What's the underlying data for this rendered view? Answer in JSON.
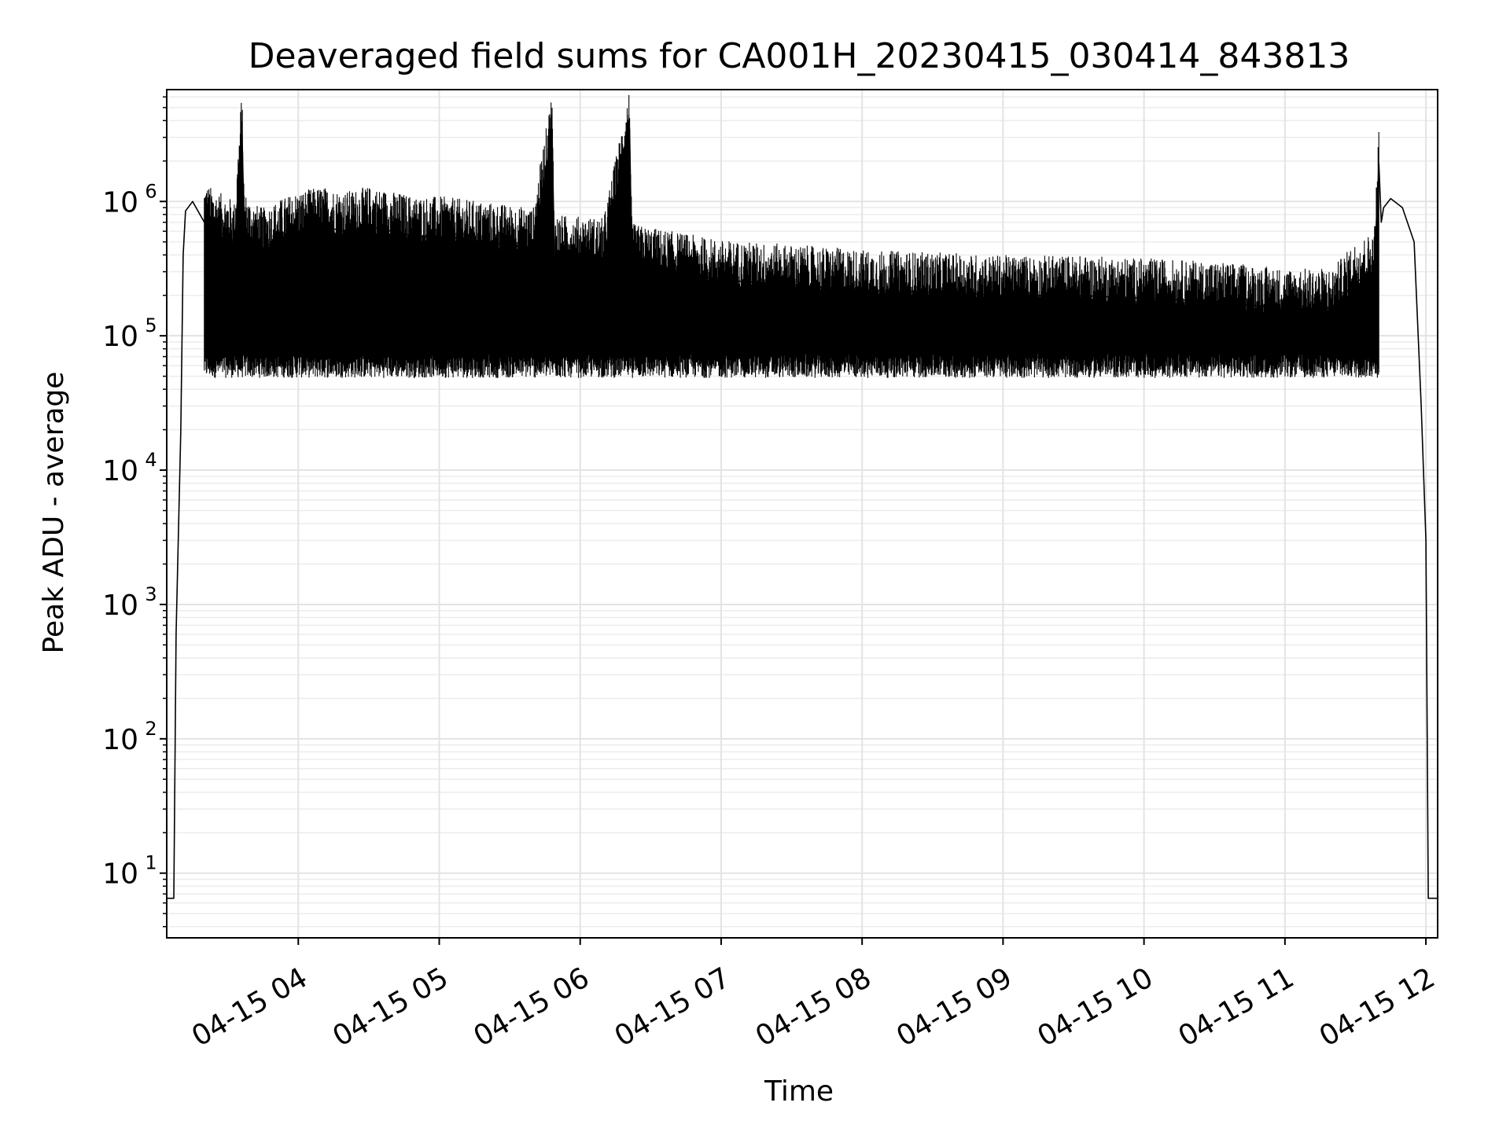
{
  "chart_data": {
    "type": "line",
    "title": "Deaveraged field sums for CA001H_20230415_030414_843813",
    "xlabel": "Time",
    "ylabel": "Peak ADU - average",
    "x_scale": "time",
    "y_scale": "log",
    "xlim": [
      "2023-04-15 03:04",
      "2023-04-15 12:05"
    ],
    "ylim": [
      3.3,
      6800000
    ],
    "x_ticks": [
      {
        "value": "2023-04-15 04:00",
        "label": "04-15 04"
      },
      {
        "value": "2023-04-15 05:00",
        "label": "04-15 05"
      },
      {
        "value": "2023-04-15 06:00",
        "label": "04-15 06"
      },
      {
        "value": "2023-04-15 07:00",
        "label": "04-15 07"
      },
      {
        "value": "2023-04-15 08:00",
        "label": "04-15 08"
      },
      {
        "value": "2023-04-15 09:00",
        "label": "04-15 09"
      },
      {
        "value": "2023-04-15 10:00",
        "label": "04-15 10"
      },
      {
        "value": "2023-04-15 11:00",
        "label": "04-15 11"
      },
      {
        "value": "2023-04-15 12:00",
        "label": "04-15 12"
      }
    ],
    "y_ticks": [
      {
        "value": 10,
        "base": "10",
        "exp": "1"
      },
      {
        "value": 100,
        "base": "10",
        "exp": "2"
      },
      {
        "value": 1000,
        "base": "10",
        "exp": "3"
      },
      {
        "value": 10000,
        "base": "10",
        "exp": "4"
      },
      {
        "value": 100000,
        "base": "10",
        "exp": "5"
      },
      {
        "value": 1000000,
        "base": "10",
        "exp": "6"
      }
    ],
    "grid": true,
    "series": [
      {
        "color": "#000000",
        "x": [
          "2023-04-15 03:04",
          "2023-04-15 03:07",
          "2023-04-15 03:08",
          "2023-04-15 03:10",
          "2023-04-15 03:11",
          "2023-04-15 03:12",
          "2023-04-15 03:15",
          "2023-04-15 03:20",
          "2023-04-15 03:25",
          "2023-04-15 03:30",
          "2023-04-15 03:33",
          "2023-04-15 03:36",
          "2023-04-15 03:37",
          "2023-04-15 03:40",
          "2023-04-15 03:45",
          "2023-04-15 03:50",
          "2023-04-15 03:55",
          "2023-04-15 04:00",
          "2023-04-15 04:10",
          "2023-04-15 04:20",
          "2023-04-15 04:30",
          "2023-04-15 04:40",
          "2023-04-15 04:50",
          "2023-04-15 05:00",
          "2023-04-15 05:20",
          "2023-04-15 05:40",
          "2023-04-15 05:48",
          "2023-04-15 05:49",
          "2023-04-15 05:50",
          "2023-04-15 06:10",
          "2023-04-15 06:21",
          "2023-04-15 06:22",
          "2023-04-15 06:23",
          "2023-04-15 06:40",
          "2023-04-15 07:00",
          "2023-04-15 07:30",
          "2023-04-15 08:00",
          "2023-04-15 08:30",
          "2023-04-15 09:00",
          "2023-04-15 09:30",
          "2023-04-15 10:00",
          "2023-04-15 10:30",
          "2023-04-15 11:00",
          "2023-04-15 11:20",
          "2023-04-15 11:30",
          "2023-04-15 11:38",
          "2023-04-15 11:40",
          "2023-04-15 11:41",
          "2023-04-15 11:42",
          "2023-04-15 11:45",
          "2023-04-15 11:50",
          "2023-04-15 11:55",
          "2023-04-15 11:58",
          "2023-04-15 12:00",
          "2023-04-15 12:01",
          "2023-04-15 12:05"
        ],
        "y": [
          6.5,
          6.5,
          600,
          20000,
          400000,
          850000,
          1000000,
          700000,
          600000,
          550000,
          500000,
          3500000,
          600000,
          500000,
          450000,
          500000,
          550000,
          600000,
          650000,
          600000,
          650000,
          600000,
          550000,
          550000,
          500000,
          450000,
          3300000,
          400000,
          400000,
          380000,
          3500000,
          350000,
          340000,
          300000,
          260000,
          240000,
          220000,
          210000,
          200000,
          200000,
          190000,
          180000,
          160000,
          160000,
          250000,
          300000,
          1900000,
          700000,
          900000,
          1050000,
          900000,
          500000,
          30000,
          3000,
          6.5,
          6.5
        ]
      }
    ]
  }
}
